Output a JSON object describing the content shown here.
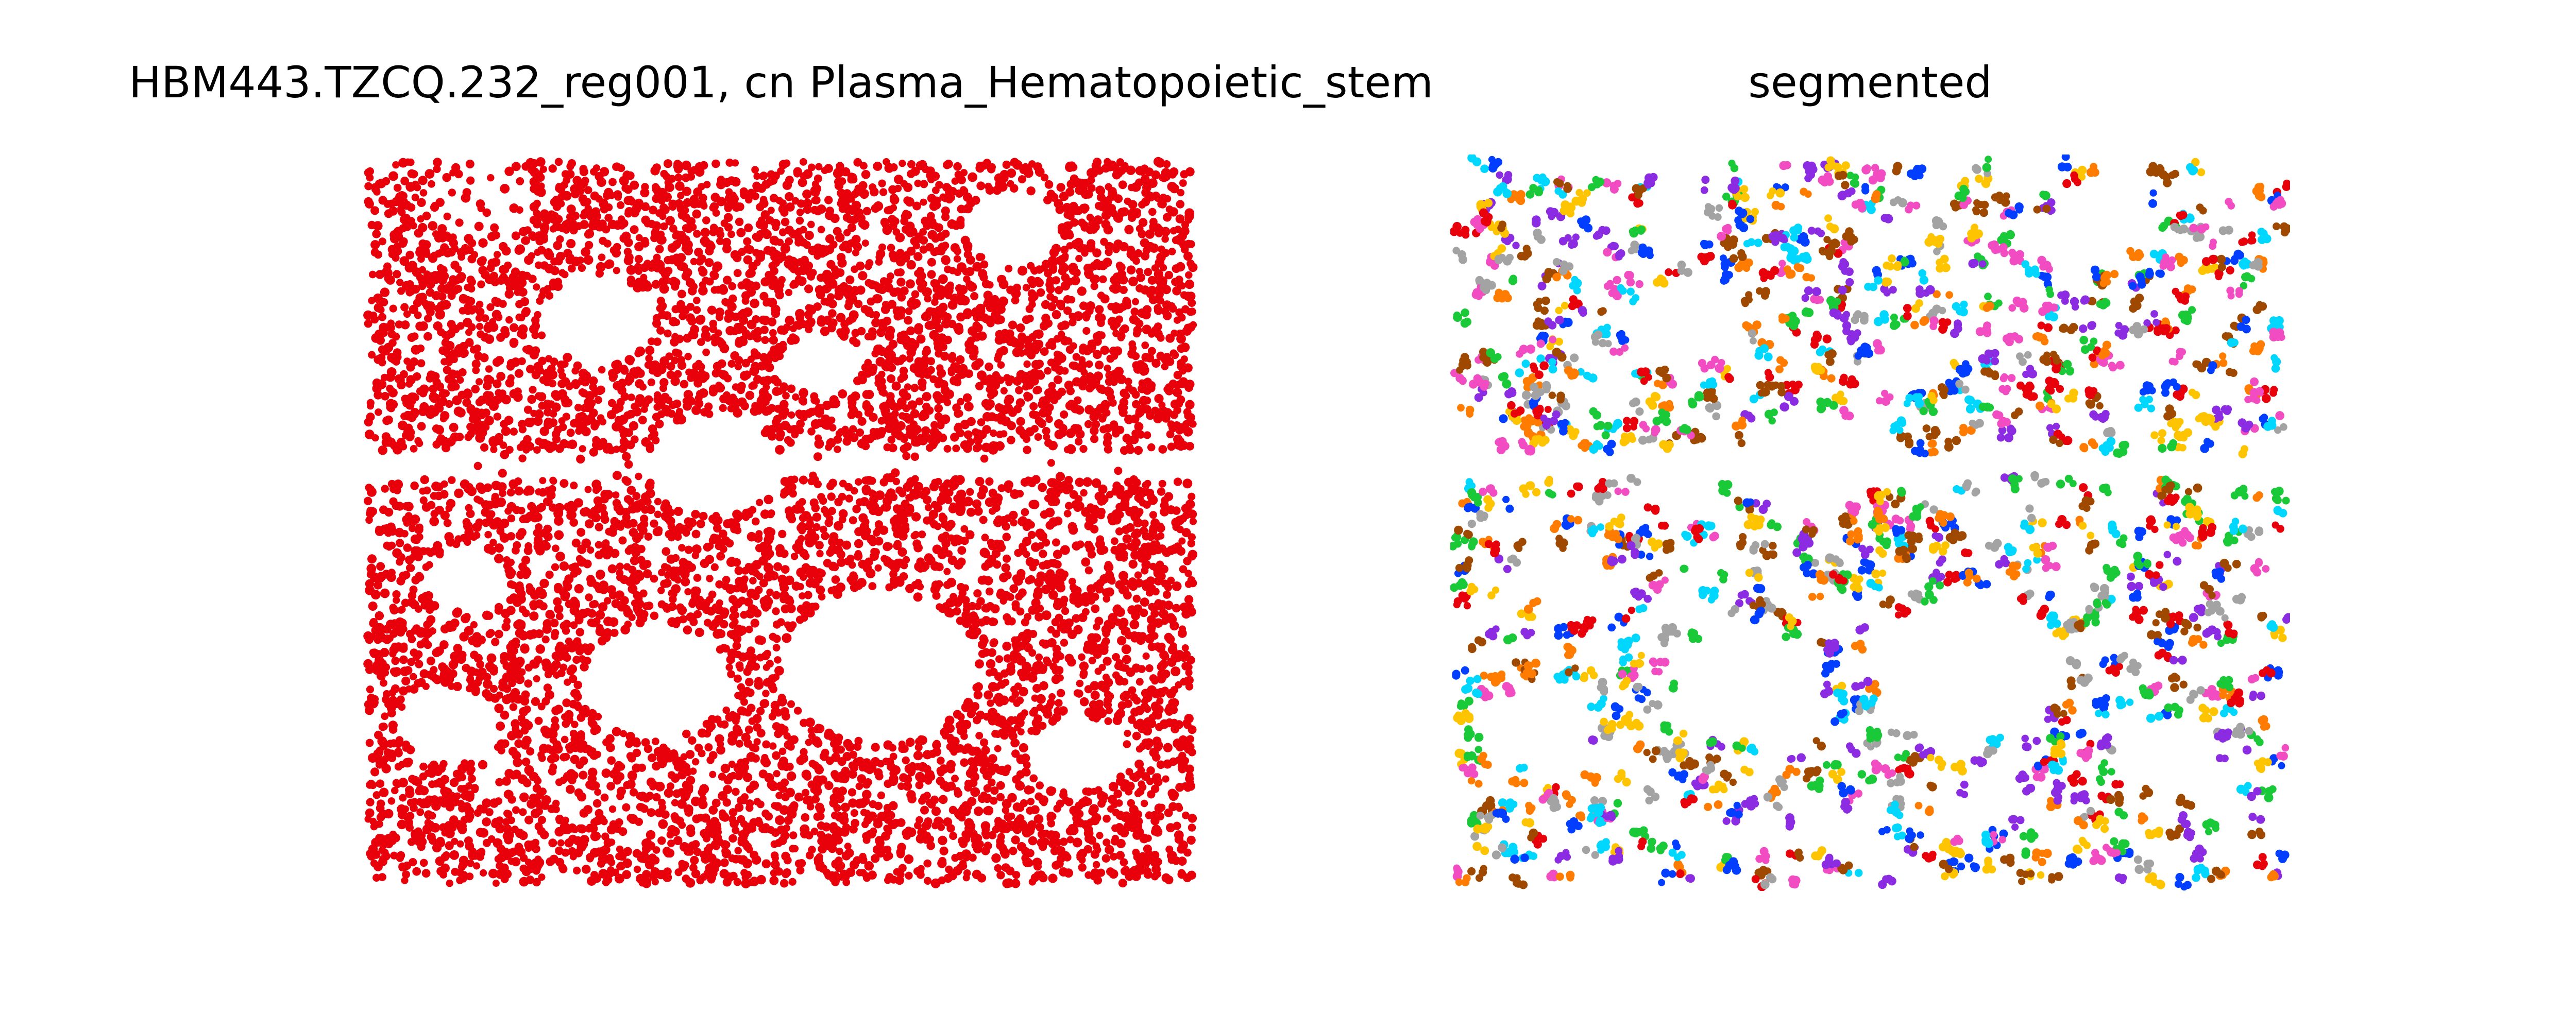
{
  "figure": {
    "title_left": "HBM443.TZCQ.232_reg001, cn Plasma_Hematopoietic_stem",
    "title_right": "segmented"
  },
  "chart_data": [
    {
      "type": "scatter",
      "title": "HBM443.TZCQ.232_reg001, cn Plasma_Hematopoietic_stem",
      "xlabel": "",
      "ylabel": "",
      "axes_visible": false,
      "grid": false,
      "xlim": [
        0,
        1
      ],
      "ylim": [
        0,
        1
      ],
      "point_color": "#e8000b",
      "approx_point_count": 9000,
      "description_of_density": {
        "empty_band_y": [
          0.6,
          0.56
        ],
        "holes": [
          {
            "cx": 0.78,
            "cy": 0.91,
            "r": 0.06
          },
          {
            "cx": 0.28,
            "cy": 0.78,
            "r": 0.07
          },
          {
            "cx": 0.55,
            "cy": 0.72,
            "r": 0.05
          },
          {
            "cx": 0.62,
            "cy": 0.3,
            "r": 0.12
          },
          {
            "cx": 0.35,
            "cy": 0.28,
            "r": 0.09
          },
          {
            "cx": 0.86,
            "cy": 0.18,
            "r": 0.06
          },
          {
            "cx": 0.1,
            "cy": 0.22,
            "r": 0.06
          },
          {
            "cx": 0.12,
            "cy": 0.42,
            "r": 0.05
          },
          {
            "cx": 0.42,
            "cy": 0.58,
            "r": 0.08
          }
        ]
      }
    },
    {
      "type": "scatter",
      "title": "segmented",
      "xlabel": "",
      "ylabel": "",
      "axes_visible": false,
      "grid": false,
      "xlim": [
        0,
        1
      ],
      "ylim": [
        0,
        1
      ],
      "approx_cluster_count": 1100,
      "palette": [
        "#023eff",
        "#ff7c00",
        "#1ac938",
        "#e8000b",
        "#8b2be2",
        "#9f4800",
        "#f14cc1",
        "#a3a3a3",
        "#ffc400",
        "#00d7ff"
      ]
    }
  ]
}
